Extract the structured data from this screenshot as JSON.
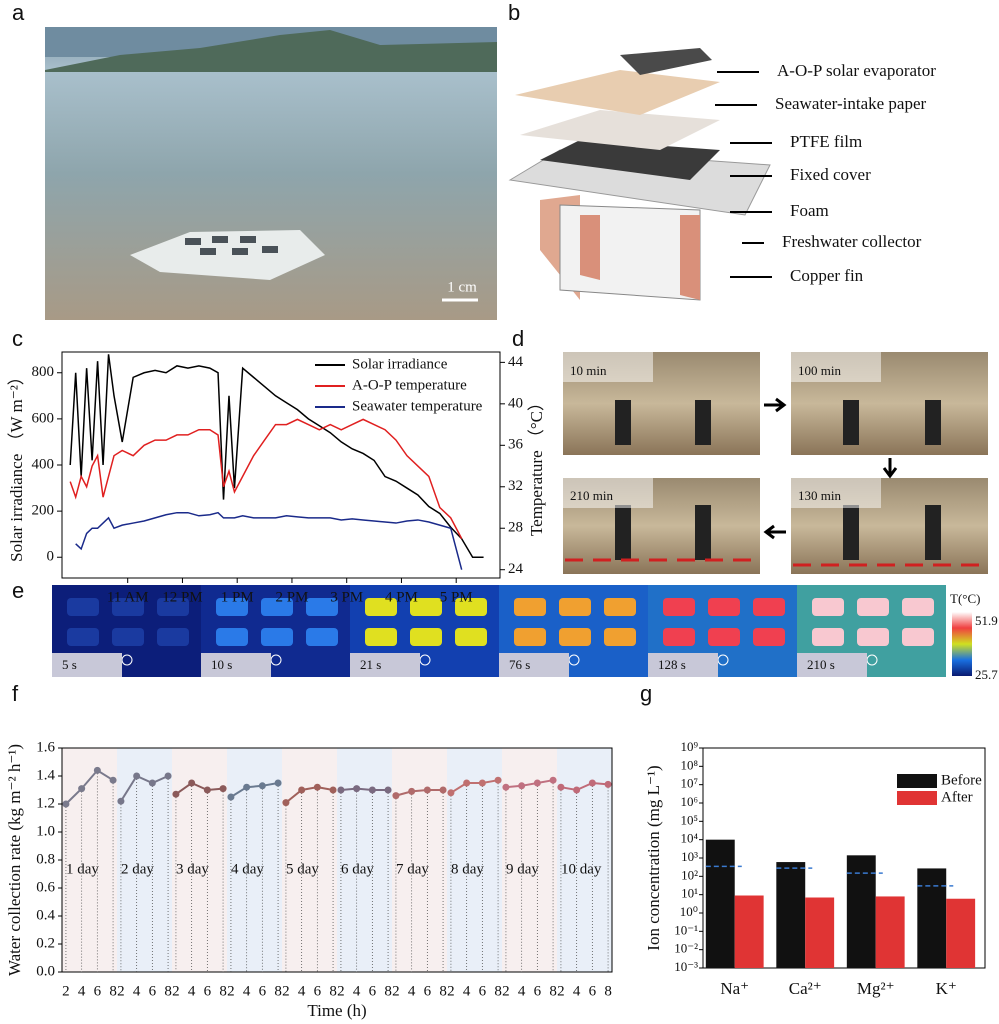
{
  "panel_labels": [
    "a",
    "b",
    "c",
    "d",
    "e",
    "f",
    "g"
  ],
  "photo_a": {
    "scale_bar": "1 cm"
  },
  "diagram_b": {
    "labels": [
      "A-O-P solar evaporator",
      "Seawater-intake paper",
      "PTFE film",
      "Fixed cover",
      "Foam",
      "Freshwater collector",
      "Copper fin"
    ]
  },
  "photos_d": {
    "labels": [
      "10 min",
      "100 min",
      "130 min",
      "210 min"
    ]
  },
  "thermal_e": {
    "labels": [
      "5 s",
      "10 s",
      "21 s",
      "76 s",
      "128 s",
      "210 s"
    ],
    "colorbar_title": "T(°C)",
    "colorbar_max": "51.9",
    "colorbar_min": "25.7"
  },
  "chart_data": [
    {
      "type": "line",
      "y_label": "Solar irradiance （W m⁻²）",
      "y2_label": "Temperature （°C）",
      "x": [
        9.95,
        10.05,
        10.15,
        10.25,
        10.35,
        10.45,
        10.55,
        10.65,
        10.75,
        10.9,
        11.1,
        11.3,
        11.5,
        11.7,
        11.9,
        12.1,
        12.3,
        12.5,
        12.65,
        12.75,
        12.85,
        12.95,
        13.1,
        13.3,
        13.5,
        13.7,
        13.9,
        14.1,
        14.3,
        14.5,
        14.7,
        14.9,
        15.1,
        15.3,
        15.5,
        15.7,
        15.9,
        16.1,
        16.3,
        16.5,
        16.7,
        16.9,
        17.1,
        17.3,
        17.5
      ],
      "xlim": [
        9.8,
        17.8
      ],
      "xticks": [
        {
          "value": 11,
          "label": "11 AM"
        },
        {
          "value": 12,
          "label": "12 PM"
        },
        {
          "value": 13,
          "label": "1 PM"
        },
        {
          "value": 14,
          "label": "2 PM"
        },
        {
          "value": 15,
          "label": "3 PM"
        },
        {
          "value": 16,
          "label": "4 PM"
        },
        {
          "value": 17,
          "label": "5 PM"
        }
      ],
      "ylim": [
        -90,
        890
      ],
      "yticks": [
        0,
        200,
        400,
        600,
        800
      ],
      "y2lim": [
        23.2,
        45
      ],
      "y2ticks": [
        24,
        28,
        32,
        36,
        40,
        44
      ],
      "legend": "upper right",
      "series": [
        {
          "name": "Solar irradiance",
          "color": "#000000",
          "values": [
            400,
            800,
            350,
            820,
            420,
            850,
            400,
            880,
            700,
            500,
            780,
            800,
            810,
            800,
            830,
            820,
            830,
            820,
            800,
            250,
            700,
            300,
            820,
            780,
            740,
            700,
            670,
            640,
            600,
            570,
            540,
            500,
            470,
            450,
            420,
            350,
            330,
            300,
            270,
            220,
            190,
            130,
            80,
            0,
            0
          ]
        },
        {
          "name": "A-O-P temperature",
          "color": "#e02020",
          "axis": "y2",
          "values": [
            32.5,
            31,
            33,
            32,
            34,
            35,
            31,
            33,
            35,
            35.5,
            35,
            36,
            36.5,
            36.5,
            37,
            37,
            37.5,
            37.5,
            37,
            32,
            33.5,
            31.5,
            33,
            35,
            36.5,
            38,
            38,
            38.5,
            38,
            37.5,
            38,
            37.5,
            38,
            38.5,
            38,
            37.5,
            36.5,
            35,
            34,
            33,
            30,
            29,
            27,
            null,
            null
          ]
        },
        {
          "name": "Seawater temperature",
          "color": "#1a2a8a",
          "axis": "y2",
          "values": [
            null,
            26.5,
            26,
            27.5,
            28,
            28,
            28.5,
            29,
            28,
            28.3,
            28.5,
            28.7,
            29,
            29.3,
            29.5,
            29.5,
            29.2,
            29.3,
            29.5,
            29,
            29,
            29,
            29.2,
            29,
            29,
            29,
            29.2,
            29.1,
            29,
            29,
            29,
            28.8,
            28.9,
            28.8,
            28.7,
            28.6,
            28.5,
            28.7,
            28.8,
            28.6,
            28.3,
            28,
            24,
            null,
            null
          ]
        }
      ]
    },
    {
      "type": "line",
      "x_label": "Time (h)",
      "y_label": "Water collection rate (kg m⁻² h⁻¹)",
      "x": [
        2,
        4,
        6,
        8
      ],
      "categories": [
        "1 day",
        "2 day",
        "3 day",
        "4 day",
        "5 day",
        "6 day",
        "7 day",
        "8 day",
        "9 day",
        "10 day"
      ],
      "ylim": [
        0,
        1.6
      ],
      "yticks": [
        {
          "value": 0,
          "label": "0.0"
        },
        {
          "value": 0.2,
          "label": "0.2"
        },
        {
          "value": 0.4,
          "label": "0.4"
        },
        {
          "value": 0.6,
          "label": "0.6"
        },
        {
          "value": 0.8,
          "label": "0.8"
        },
        {
          "value": 1,
          "label": "1.0"
        },
        {
          "value": 1.2,
          "label": "1.2"
        },
        {
          "value": 1.4,
          "label": "1.4"
        },
        {
          "value": 1.6,
          "label": "1.6"
        }
      ],
      "band_colors": [
        "#f7efef",
        "#e9eff8"
      ],
      "series": [
        {
          "color": "#7a7a8c",
          "values": [
            1.2,
            1.31,
            1.44,
            1.37
          ]
        },
        {
          "color": "#77778a",
          "values": [
            1.22,
            1.4,
            1.35,
            1.4
          ]
        },
        {
          "color": "#8b5a5a",
          "values": [
            1.27,
            1.35,
            1.3,
            1.31
          ]
        },
        {
          "color": "#6a7a90",
          "values": [
            1.25,
            1.32,
            1.33,
            1.35
          ]
        },
        {
          "color": "#a0605a",
          "values": [
            1.21,
            1.3,
            1.32,
            1.3
          ]
        },
        {
          "color": "#7a6a80",
          "values": [
            1.3,
            1.31,
            1.3,
            1.3
          ]
        },
        {
          "color": "#b06a6a",
          "values": [
            1.26,
            1.29,
            1.3,
            1.3
          ]
        },
        {
          "color": "#c07070",
          "values": [
            1.28,
            1.35,
            1.35,
            1.37
          ]
        },
        {
          "color": "#c07080",
          "values": [
            1.32,
            1.33,
            1.35,
            1.37
          ]
        },
        {
          "color": "#c06a78",
          "values": [
            1.32,
            1.3,
            1.35,
            1.34
          ]
        }
      ]
    },
    {
      "type": "bar",
      "log_scale": true,
      "y_label": "Ion concentration (mg L⁻¹)",
      "categories": [
        "Na⁺",
        "Ca²⁺",
        "Mg²⁺",
        "K⁺"
      ],
      "ylim": [
        0.001,
        1000000000
      ],
      "yticks": [
        {
          "value": 0.001,
          "label": "10⁻³"
        },
        {
          "value": 0.01,
          "label": "10⁻²"
        },
        {
          "value": 0.1,
          "label": "10⁻¹"
        },
        {
          "value": 1,
          "label": "10⁰"
        },
        {
          "value": 10,
          "label": "10¹"
        },
        {
          "value": 100,
          "label": "10²"
        },
        {
          "value": 1000,
          "label": "10³"
        },
        {
          "value": 10000,
          "label": "10⁴"
        },
        {
          "value": 100000,
          "label": "10⁵"
        },
        {
          "value": 1000000,
          "label": "10⁶"
        },
        {
          "value": 10000000,
          "label": "10⁷"
        },
        {
          "value": 100000000,
          "label": "10⁸"
        },
        {
          "value": 1000000000,
          "label": "10⁹"
        }
      ],
      "legend": "upper right",
      "series": [
        {
          "name": "Before",
          "color": "#111111",
          "values": [
            10000,
            600,
            1400,
            270
          ]
        },
        {
          "name": "After",
          "color": "#e03434",
          "values": [
            9,
            7,
            8,
            6
          ]
        }
      ],
      "reference_lines": {
        "color": "#3a7ad0",
        "values": [
          350,
          280,
          150,
          30
        ]
      }
    }
  ]
}
